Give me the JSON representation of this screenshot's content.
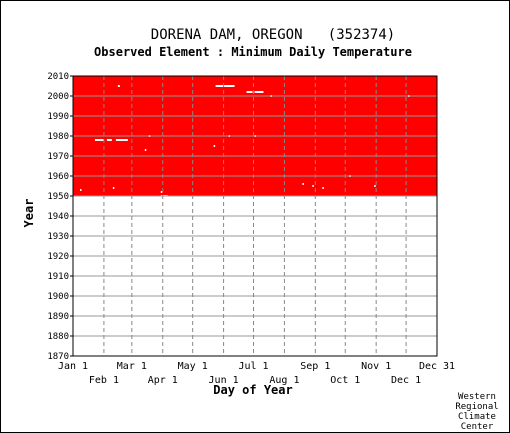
{
  "chart_data": {
    "type": "heatmap",
    "title": "DORENA DAM, OREGON   (352374)",
    "subtitle": "Observed Element : Minimum Daily Temperature",
    "xlabel": "Day of Year",
    "ylabel": "Year",
    "xlim": [
      1,
      366
    ],
    "ylim": [
      1870,
      2010
    ],
    "x_ticks_upper": [
      {
        "label": "Jan 1",
        "day": 1
      },
      {
        "label": "Mar 1",
        "day": 60
      },
      {
        "label": "May 1",
        "day": 121
      },
      {
        "label": "Jul 1",
        "day": 182
      },
      {
        "label": "Sep 1",
        "day": 244
      },
      {
        "label": "Nov 1",
        "day": 305
      },
      {
        "label": "Dec 31",
        "day": 366
      }
    ],
    "x_ticks_lower": [
      {
        "label": "Feb 1",
        "day": 32
      },
      {
        "label": "Apr 1",
        "day": 91
      },
      {
        "label": "Jun 1",
        "day": 152
      },
      {
        "label": "Aug 1",
        "day": 213
      },
      {
        "label": "Oct 1",
        "day": 274
      },
      {
        "label": "Dec 1",
        "day": 335
      }
    ],
    "y_ticks": [
      2010,
      2000,
      1990,
      1980,
      1970,
      1960,
      1950,
      1940,
      1930,
      1920,
      1910,
      1900,
      1890,
      1880,
      1870
    ],
    "observed_color": "#ff0000",
    "observed_year_range": [
      1950,
      2010
    ],
    "grid": true,
    "missing_segments": [
      {
        "year": 1978,
        "start_day": 23,
        "end_day": 32
      },
      {
        "year": 1978,
        "start_day": 35,
        "end_day": 40
      },
      {
        "year": 1978,
        "start_day": 44,
        "end_day": 56
      },
      {
        "year": 2005,
        "start_day": 144,
        "end_day": 163
      },
      {
        "year": 2002,
        "start_day": 175,
        "end_day": 181
      },
      {
        "year": 2002,
        "start_day": 183,
        "end_day": 192
      },
      {
        "year": 2005,
        "start_day": 46,
        "end_day": 48
      },
      {
        "year": 2000,
        "start_day": 199,
        "end_day": 200
      },
      {
        "year": 2000,
        "start_day": 337,
        "end_day": 338
      },
      {
        "year": 1980,
        "start_day": 77,
        "end_day": 78
      },
      {
        "year": 1973,
        "start_day": 73,
        "end_day": 74
      },
      {
        "year": 1975,
        "start_day": 142,
        "end_day": 143
      },
      {
        "year": 1953,
        "start_day": 8,
        "end_day": 9
      },
      {
        "year": 1954,
        "start_day": 41,
        "end_day": 42
      },
      {
        "year": 1952,
        "start_day": 89,
        "end_day": 90
      },
      {
        "year": 1950,
        "start_day": 89,
        "end_day": 96
      },
      {
        "year": 1956,
        "start_day": 231,
        "end_day": 232
      },
      {
        "year": 1955,
        "start_day": 241,
        "end_day": 242
      },
      {
        "year": 1955,
        "start_day": 303,
        "end_day": 304
      },
      {
        "year": 1960,
        "start_day": 278,
        "end_day": 279
      },
      {
        "year": 1980,
        "start_day": 183,
        "end_day": 184
      },
      {
        "year": 1980,
        "start_day": 157,
        "end_day": 158
      },
      {
        "year": 1954,
        "start_day": 251,
        "end_day": 252
      }
    ]
  },
  "footer": {
    "credit_lines": [
      "Western",
      "Regional",
      "Climate",
      "Center"
    ]
  }
}
